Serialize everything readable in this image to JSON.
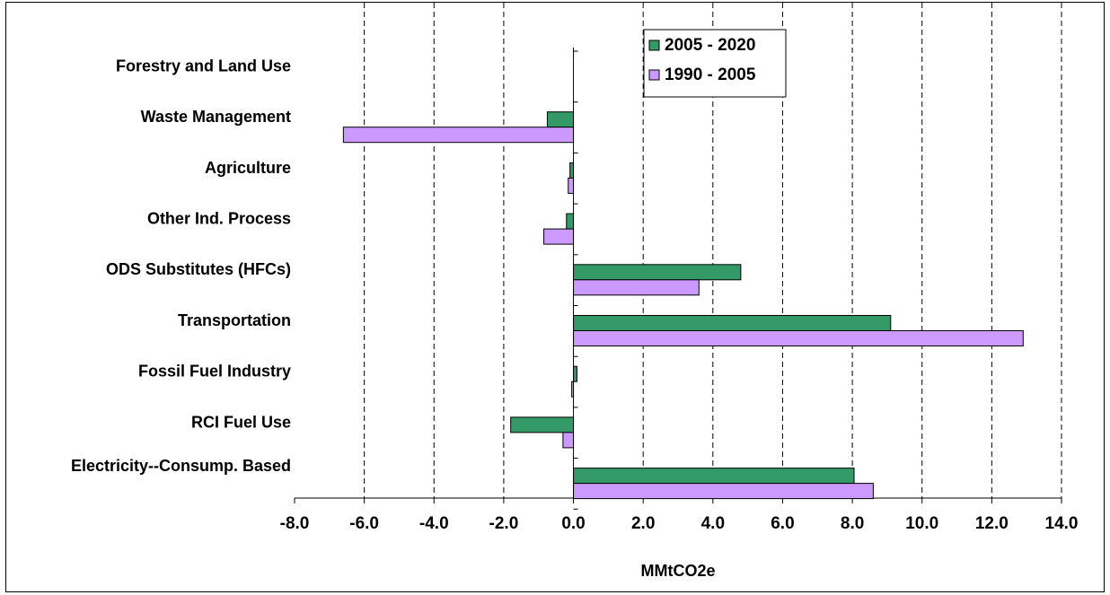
{
  "chart_data": {
    "type": "bar",
    "orientation": "horizontal",
    "title": "",
    "xlabel": "MMtCO2e",
    "ylabel": "",
    "xlim": [
      -8,
      14
    ],
    "x_tick_labels": [
      "-8.0",
      "-6.0",
      "-4.0",
      "-2.0",
      "0.0",
      "2.0",
      "4.0",
      "6.0",
      "8.0",
      "10.0",
      "12.0",
      "14.0"
    ],
    "grid": "vertical dashed",
    "legend_position": "top-center",
    "categories": [
      "Forestry and Land Use",
      "Waste Management",
      "Agriculture",
      "Other Ind. Process",
      "ODS Substitutes (HFCs)",
      "Transportation",
      "Fossil Fuel Industry",
      "RCI Fuel Use",
      "Electricity--Consump. Based"
    ],
    "series": [
      {
        "name": "2005 - 2020",
        "color": "#339966",
        "values": [
          0.0,
          -0.75,
          -0.1,
          -0.2,
          4.8,
          9.1,
          0.1,
          -1.8,
          8.05
        ]
      },
      {
        "name": "1990 - 2005",
        "color": "#cc99ff",
        "values": [
          0.0,
          -6.6,
          -0.15,
          -0.85,
          3.6,
          12.9,
          -0.05,
          -0.3,
          8.6
        ]
      }
    ]
  }
}
